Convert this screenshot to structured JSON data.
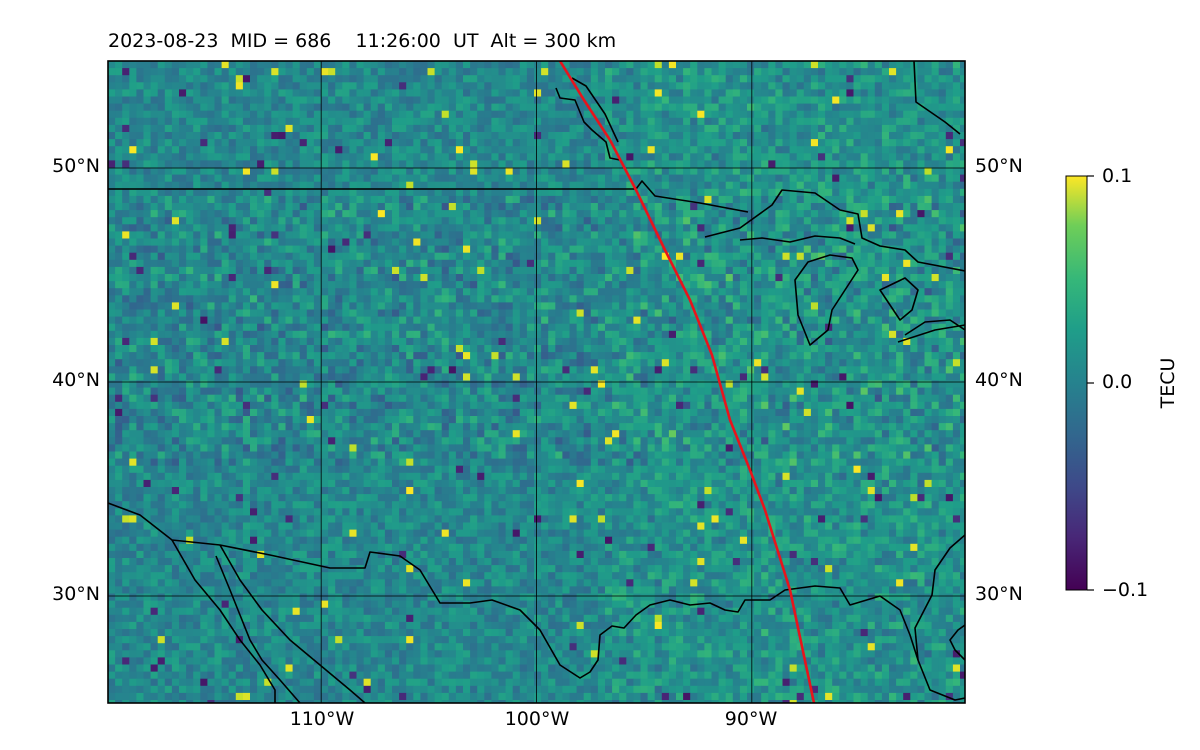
{
  "title": "2023-08-23  MID = 686    11:26:00  UT  Alt = 300 km",
  "map": {
    "extent": {
      "lon_min": -119.9,
      "lon_max": -80.1,
      "lat_min": 25,
      "lat_max": 55
    },
    "lat_labels": [
      {
        "lat": 50,
        "text": "50°N"
      },
      {
        "lat": 40,
        "text": "40°N"
      },
      {
        "lat": 30,
        "text": "30°N"
      }
    ],
    "lon_labels": [
      {
        "lon": -110,
        "text": "110°W"
      },
      {
        "lon": -100,
        "text": "100°W"
      },
      {
        "lon": -90,
        "text": "90°W"
      }
    ],
    "gridlines": true,
    "terminator_color": "#e8141c",
    "coastline_color": "#000000"
  },
  "colorbar": {
    "label": "TECU",
    "vmin": -0.1,
    "vmax": 0.1,
    "ticks": [
      {
        "value": 0.1,
        "text": "0.1"
      },
      {
        "value": 0.0,
        "text": "0.0"
      },
      {
        "value": -0.1,
        "text": "−0.1"
      }
    ],
    "colormap": "viridis"
  }
}
